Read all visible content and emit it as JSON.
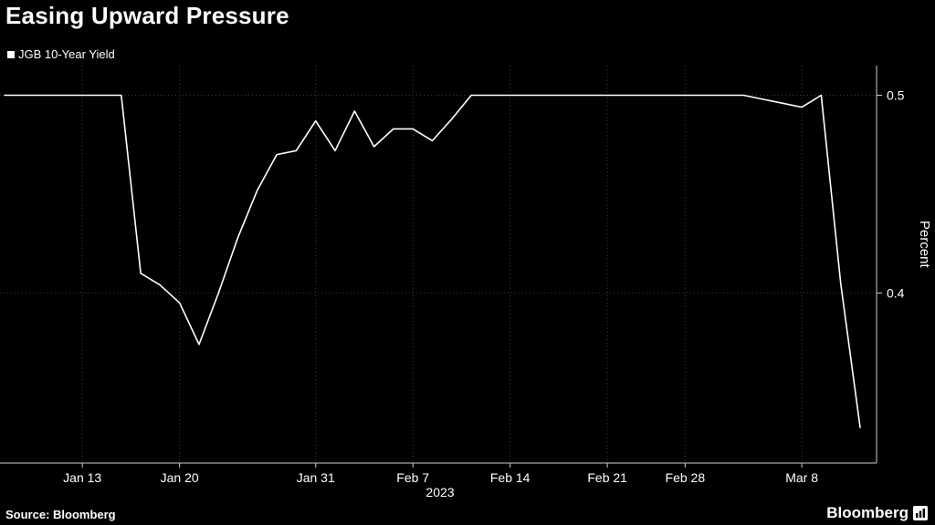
{
  "header": {
    "title": "Easing Upward Pressure"
  },
  "legend": {
    "label": "JGB 10-Year Yield",
    "swatch_color": "#ffffff"
  },
  "footer": {
    "source": "Source: Bloomberg",
    "brand": "Bloomberg"
  },
  "chart_data": {
    "type": "line",
    "title": "Easing Upward Pressure",
    "series_name": "JGB 10-Year Yield",
    "ylabel": "Percent",
    "year_label": "2023",
    "line_color": "#ffffff",
    "background": "#000000",
    "grid_color": "#3b3b3b",
    "axis_color": "#d0d0d0",
    "ylim": [
      0.314,
      0.515
    ],
    "yticks": [
      {
        "value": 0.5,
        "label": "0.5"
      },
      {
        "value": 0.4,
        "label": "0.4"
      }
    ],
    "x": [
      "Jan 6",
      "Jan 10",
      "Jan 11",
      "Jan 12",
      "Jan 13",
      "Jan 16",
      "Jan 17",
      "Jan 18",
      "Jan 19",
      "Jan 20",
      "Jan 23",
      "Jan 24",
      "Jan 25",
      "Jan 26",
      "Jan 27",
      "Jan 30",
      "Jan 31",
      "Feb 1",
      "Feb 2",
      "Feb 3",
      "Feb 6",
      "Feb 7",
      "Feb 8",
      "Feb 9",
      "Feb 10",
      "Feb 13",
      "Feb 14",
      "Feb 15",
      "Feb 16",
      "Feb 17",
      "Feb 20",
      "Feb 21",
      "Feb 22",
      "Feb 24",
      "Feb 27",
      "Feb 28",
      "Mar 1",
      "Mar 2",
      "Mar 3",
      "Mar 6",
      "Mar 7",
      "Mar 8",
      "Mar 9",
      "Mar 10",
      "Mar 13"
    ],
    "y": [
      0.5,
      0.5,
      0.5,
      0.5,
      0.5,
      0.5,
      0.5,
      0.41,
      0.404,
      0.395,
      0.374,
      0.4,
      0.428,
      0.452,
      0.47,
      0.472,
      0.487,
      0.472,
      0.492,
      0.474,
      0.483,
      0.483,
      0.477,
      0.488,
      0.5,
      0.5,
      0.5,
      0.5,
      0.5,
      0.5,
      0.5,
      0.5,
      0.5,
      0.5,
      0.5,
      0.5,
      0.5,
      0.5,
      0.5,
      0.498,
      0.496,
      0.494,
      0.5,
      0.405,
      0.332
    ],
    "xticks": [
      {
        "label": "Jan 13",
        "index": 4
      },
      {
        "label": "Jan 20",
        "index": 9
      },
      {
        "label": "Jan 31",
        "index": 16
      },
      {
        "label": "Feb 7",
        "index": 21
      },
      {
        "label": "Feb 14",
        "index": 26
      },
      {
        "label": "Feb 21",
        "index": 31
      },
      {
        "label": "Feb 28",
        "index": 35
      },
      {
        "label": "Mar 8",
        "index": 41
      }
    ],
    "legend_position": "top-left",
    "grid": true
  }
}
